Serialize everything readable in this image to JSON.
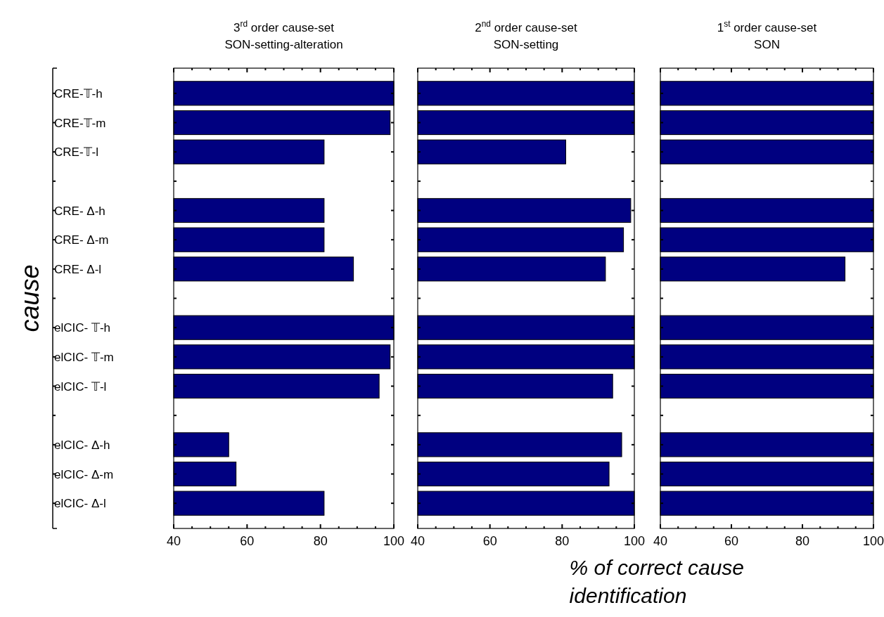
{
  "chart_data": [
    {
      "type": "bar",
      "orientation": "horizontal",
      "title": "3$^{rd}$  order cause-set",
      "subtitle": "SON-setting-alteration",
      "ylabel": "cause",
      "categories": [
        "CRE-𝕋-h",
        "CRE-𝕋-m",
        "CRE-𝕋-l",
        null,
        "CRE- Δ-h",
        "CRE- Δ-m",
        "CRE- Δ-l",
        null,
        "elCIC- 𝕋-h",
        "elCIC- 𝕋-m",
        "elCIC- 𝕋-l",
        null,
        "elCIC- Δ-h",
        "elCIC- Δ-m",
        "elCIC- Δ-l"
      ],
      "values": [
        100,
        99,
        81,
        null,
        81,
        81,
        89,
        null,
        100,
        99,
        96,
        null,
        55,
        57,
        81
      ],
      "color": "#000080",
      "xlim": [
        40,
        100
      ],
      "xticks": [
        40,
        {
          "value": 45,
          "label": null
        },
        {
          "value": 50,
          "label": null
        },
        {
          "value": 55,
          "label": null
        },
        60,
        {
          "value": 65,
          "label": null
        },
        {
          "value": 70,
          "label": null
        },
        {
          "value": 75,
          "label": null
        },
        80,
        {
          "value": 85,
          "label": null
        },
        {
          "value": 90,
          "label": null
        },
        {
          "value": 95,
          "label": null
        },
        100
      ]
    },
    {
      "type": "bar",
      "orientation": "horizontal",
      "title": "2$^{nd}$  order cause-set",
      "subtitle": "SON-setting",
      "xlabel": "% of correct cause identification",
      "tick_labels": "x",
      "categories": [
        null,
        null,
        null,
        null,
        null,
        null,
        null,
        null,
        null,
        null,
        null,
        null,
        null,
        null,
        null
      ],
      "values": [
        100,
        100,
        81,
        null,
        99,
        97,
        92,
        null,
        100,
        100,
        94,
        null,
        96.5,
        93,
        100
      ],
      "color": "#000080",
      "xlim": [
        40,
        100
      ],
      "xticks": [
        40,
        {
          "value": 45,
          "label": null
        },
        {
          "value": 50,
          "label": null
        },
        {
          "value": 55,
          "label": null
        },
        60,
        {
          "value": 65,
          "label": null
        },
        {
          "value": 70,
          "label": null
        },
        {
          "value": 75,
          "label": null
        },
        80,
        {
          "value": 85,
          "label": null
        },
        {
          "value": 90,
          "label": null
        },
        {
          "value": 95,
          "label": null
        },
        100
      ]
    },
    {
      "type": "bar",
      "orientation": "horizontal",
      "title": "1$^{st}$  order cause-set",
      "subtitle": "SON",
      "tick_labels": "x",
      "categories": [
        null,
        null,
        null,
        null,
        null,
        null,
        null,
        null,
        null,
        null,
        null,
        null,
        null,
        null,
        null
      ],
      "values": [
        100,
        100,
        100,
        null,
        100,
        100,
        92,
        null,
        100,
        100,
        100,
        null,
        100,
        100,
        100
      ],
      "color": "#000080",
      "xlim": [
        40,
        100
      ],
      "xticks": [
        40,
        {
          "value": 45,
          "label": null
        },
        {
          "value": 50,
          "label": null
        },
        {
          "value": 55,
          "label": null
        },
        60,
        {
          "value": 65,
          "label": null
        },
        {
          "value": 70,
          "label": null
        },
        {
          "value": 75,
          "label": null
        },
        80,
        {
          "value": 85,
          "label": null
        },
        {
          "value": 90,
          "label": null
        },
        {
          "value": 95,
          "label": null
        },
        100
      ]
    }
  ]
}
